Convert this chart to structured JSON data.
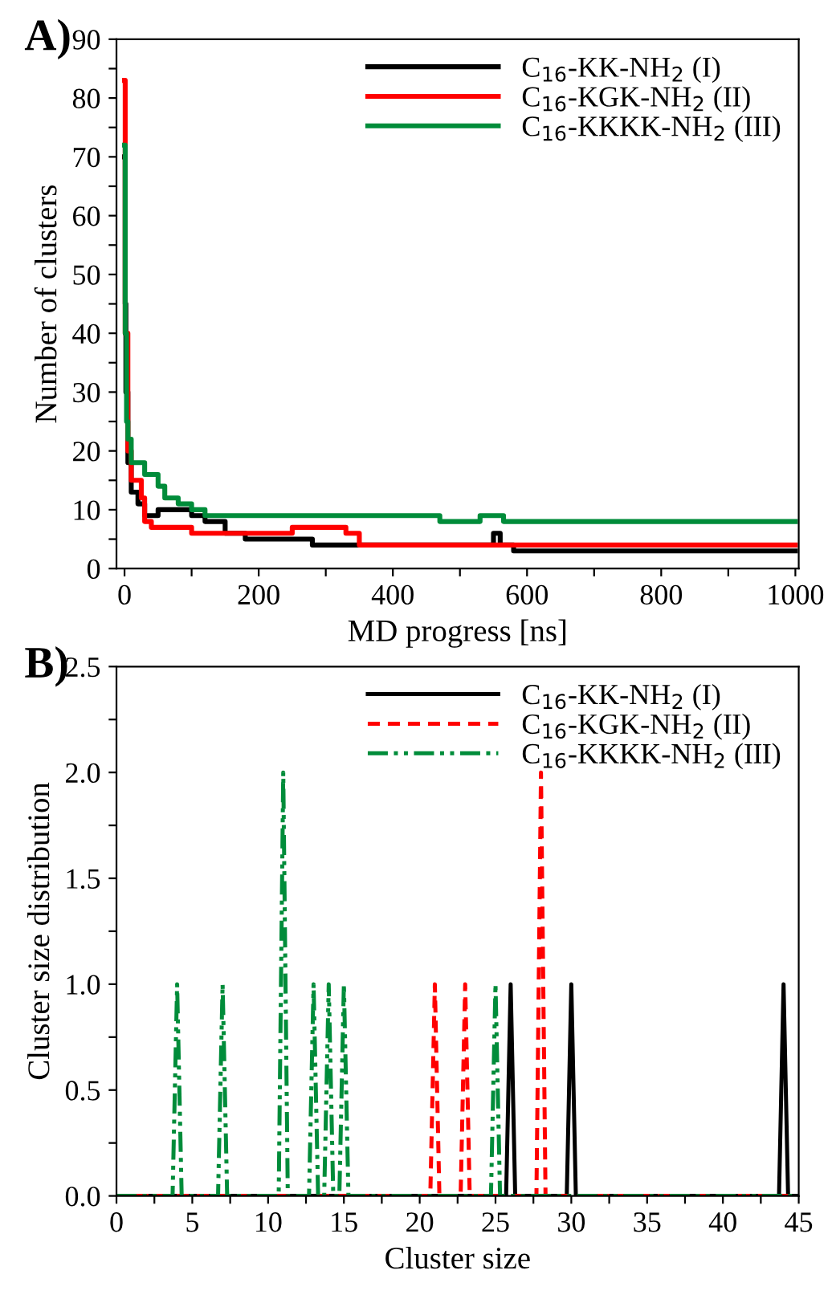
{
  "chart_data": [
    {
      "type": "step",
      "title": "A)",
      "xlabel": "MD progress [ns]",
      "ylabel": "Number of clusters",
      "xlim": [
        -12,
        1005
      ],
      "ylim": [
        0,
        90
      ],
      "xticks": [
        0,
        {
          "value": 100,
          "label": null
        },
        200,
        {
          "value": 300,
          "label": null
        },
        400,
        {
          "value": 500,
          "label": null
        },
        600,
        {
          "value": 700,
          "label": null
        },
        800,
        {
          "value": 900,
          "label": null
        },
        1000
      ],
      "yticks": [
        0,
        {
          "value": 5,
          "label": null
        },
        10,
        {
          "value": 15,
          "label": null
        },
        20,
        {
          "value": 25,
          "label": null
        },
        30,
        {
          "value": 35,
          "label": null
        },
        40,
        {
          "value": 45,
          "label": null
        },
        50,
        {
          "value": 55,
          "label": null
        },
        60,
        {
          "value": 65,
          "label": null
        },
        70,
        {
          "value": 75,
          "label": null
        },
        80,
        {
          "value": 85,
          "label": null
        },
        90
      ],
      "legend": "top right",
      "grid": false,
      "line_style": "solid",
      "marker": "none",
      "series": [
        {
          "name": "C$_{16}$-KK-NH$_{2}$ (I)",
          "color": "#000000",
          "x": [
            0,
            1,
            2,
            5,
            10,
            20,
            30,
            50,
            100,
            120,
            150,
            180,
            280,
            550,
            560,
            580,
            1000
          ],
          "values": [
            70,
            45,
            30,
            18,
            13,
            11,
            9,
            10,
            9,
            8,
            6,
            5,
            4,
            6,
            4,
            3,
            3
          ]
        },
        {
          "name": "C$_{16}$-KGK-NH$_{2}$ (II)",
          "color": "#ff0000",
          "x": [
            0,
            1,
            5,
            10,
            25,
            30,
            40,
            100,
            250,
            330,
            350,
            1000
          ],
          "values": [
            83,
            40,
            20,
            15,
            12,
            8,
            7,
            6,
            7,
            6,
            4,
            4
          ]
        },
        {
          "name": "C$_{16}$-KKKK-NH$_{2}$ (III)",
          "color": "#008c3a",
          "x": [
            0,
            1,
            3,
            5,
            10,
            30,
            50,
            60,
            80,
            100,
            120,
            470,
            530,
            565,
            1000
          ],
          "values": [
            72,
            40,
            25,
            22,
            18,
            16,
            14,
            12,
            11,
            10,
            9,
            8,
            9,
            8,
            8
          ]
        }
      ]
    },
    {
      "type": "line",
      "title": "B)",
      "xlabel": "Cluster size",
      "ylabel": "Cluster size distribution",
      "xlim": [
        0,
        45
      ],
      "ylim": [
        0,
        2.5
      ],
      "xticks": [
        0,
        {
          "value": 2.5,
          "label": null
        },
        5,
        {
          "value": 7.5,
          "label": null
        },
        10,
        {
          "value": 12.5,
          "label": null
        },
        15,
        {
          "value": 17.5,
          "label": null
        },
        20,
        {
          "value": 22.5,
          "label": null
        },
        25,
        {
          "value": 27.5,
          "label": null
        },
        30,
        {
          "value": 32.5,
          "label": null
        },
        35,
        {
          "value": 37.5,
          "label": null
        },
        40,
        {
          "value": 42.5,
          "label": null
        },
        45
      ],
      "yticks": [
        {
          "value": 0,
          "label": "0.0"
        },
        {
          "value": 0.25,
          "label": null
        },
        {
          "value": 0.5,
          "label": "0.5"
        },
        {
          "value": 0.75,
          "label": null
        },
        {
          "value": 1.0,
          "label": "1.0"
        },
        {
          "value": 1.25,
          "label": null
        },
        {
          "value": 1.5,
          "label": "1.5"
        },
        {
          "value": 1.75,
          "label": null
        },
        {
          "value": 2.0,
          "label": "2.0"
        },
        {
          "value": 2.25,
          "label": null
        },
        {
          "value": 2.5,
          "label": "2.5"
        }
      ],
      "legend": "top right",
      "grid": false,
      "marker": "none",
      "series": [
        {
          "name": "C$_{16}$-KK-NH$_{2}$ (I)",
          "color": "#000000",
          "line_style": "solid",
          "x": [
            0,
            25.7,
            26,
            26.3,
            29.7,
            30,
            30.3,
            43.7,
            44,
            44.3,
            45
          ],
          "values": [
            0,
            0,
            1,
            0,
            0,
            1,
            0,
            0,
            1,
            0,
            0
          ]
        },
        {
          "name": "C$_{16}$-KGK-NH$_{2}$ (II)",
          "color": "#ff0000",
          "line_style": "dashed",
          "x": [
            0,
            20.7,
            21,
            21.3,
            22.7,
            23,
            23.3,
            27.7,
            28,
            28.3,
            45
          ],
          "values": [
            0,
            0,
            1,
            0,
            0,
            1,
            0,
            0,
            2,
            0,
            0
          ]
        },
        {
          "name": "C$_{16}$-KKKK-NH$_{2}$ (III)",
          "color": "#008c3a",
          "line_style": "dashdotdot",
          "x": [
            0,
            3.7,
            4,
            4.3,
            6.7,
            7,
            7.3,
            10.7,
            11,
            11.3,
            12.7,
            13,
            13.3,
            13.7,
            14,
            14.3,
            14.7,
            15,
            15.3,
            24.7,
            25,
            25.3,
            45
          ],
          "values": [
            0,
            0,
            1,
            0,
            0,
            1,
            0,
            0,
            2,
            0,
            0,
            1,
            0,
            0,
            1,
            0,
            0,
            1,
            0,
            0,
            1,
            0,
            0
          ]
        }
      ]
    }
  ]
}
